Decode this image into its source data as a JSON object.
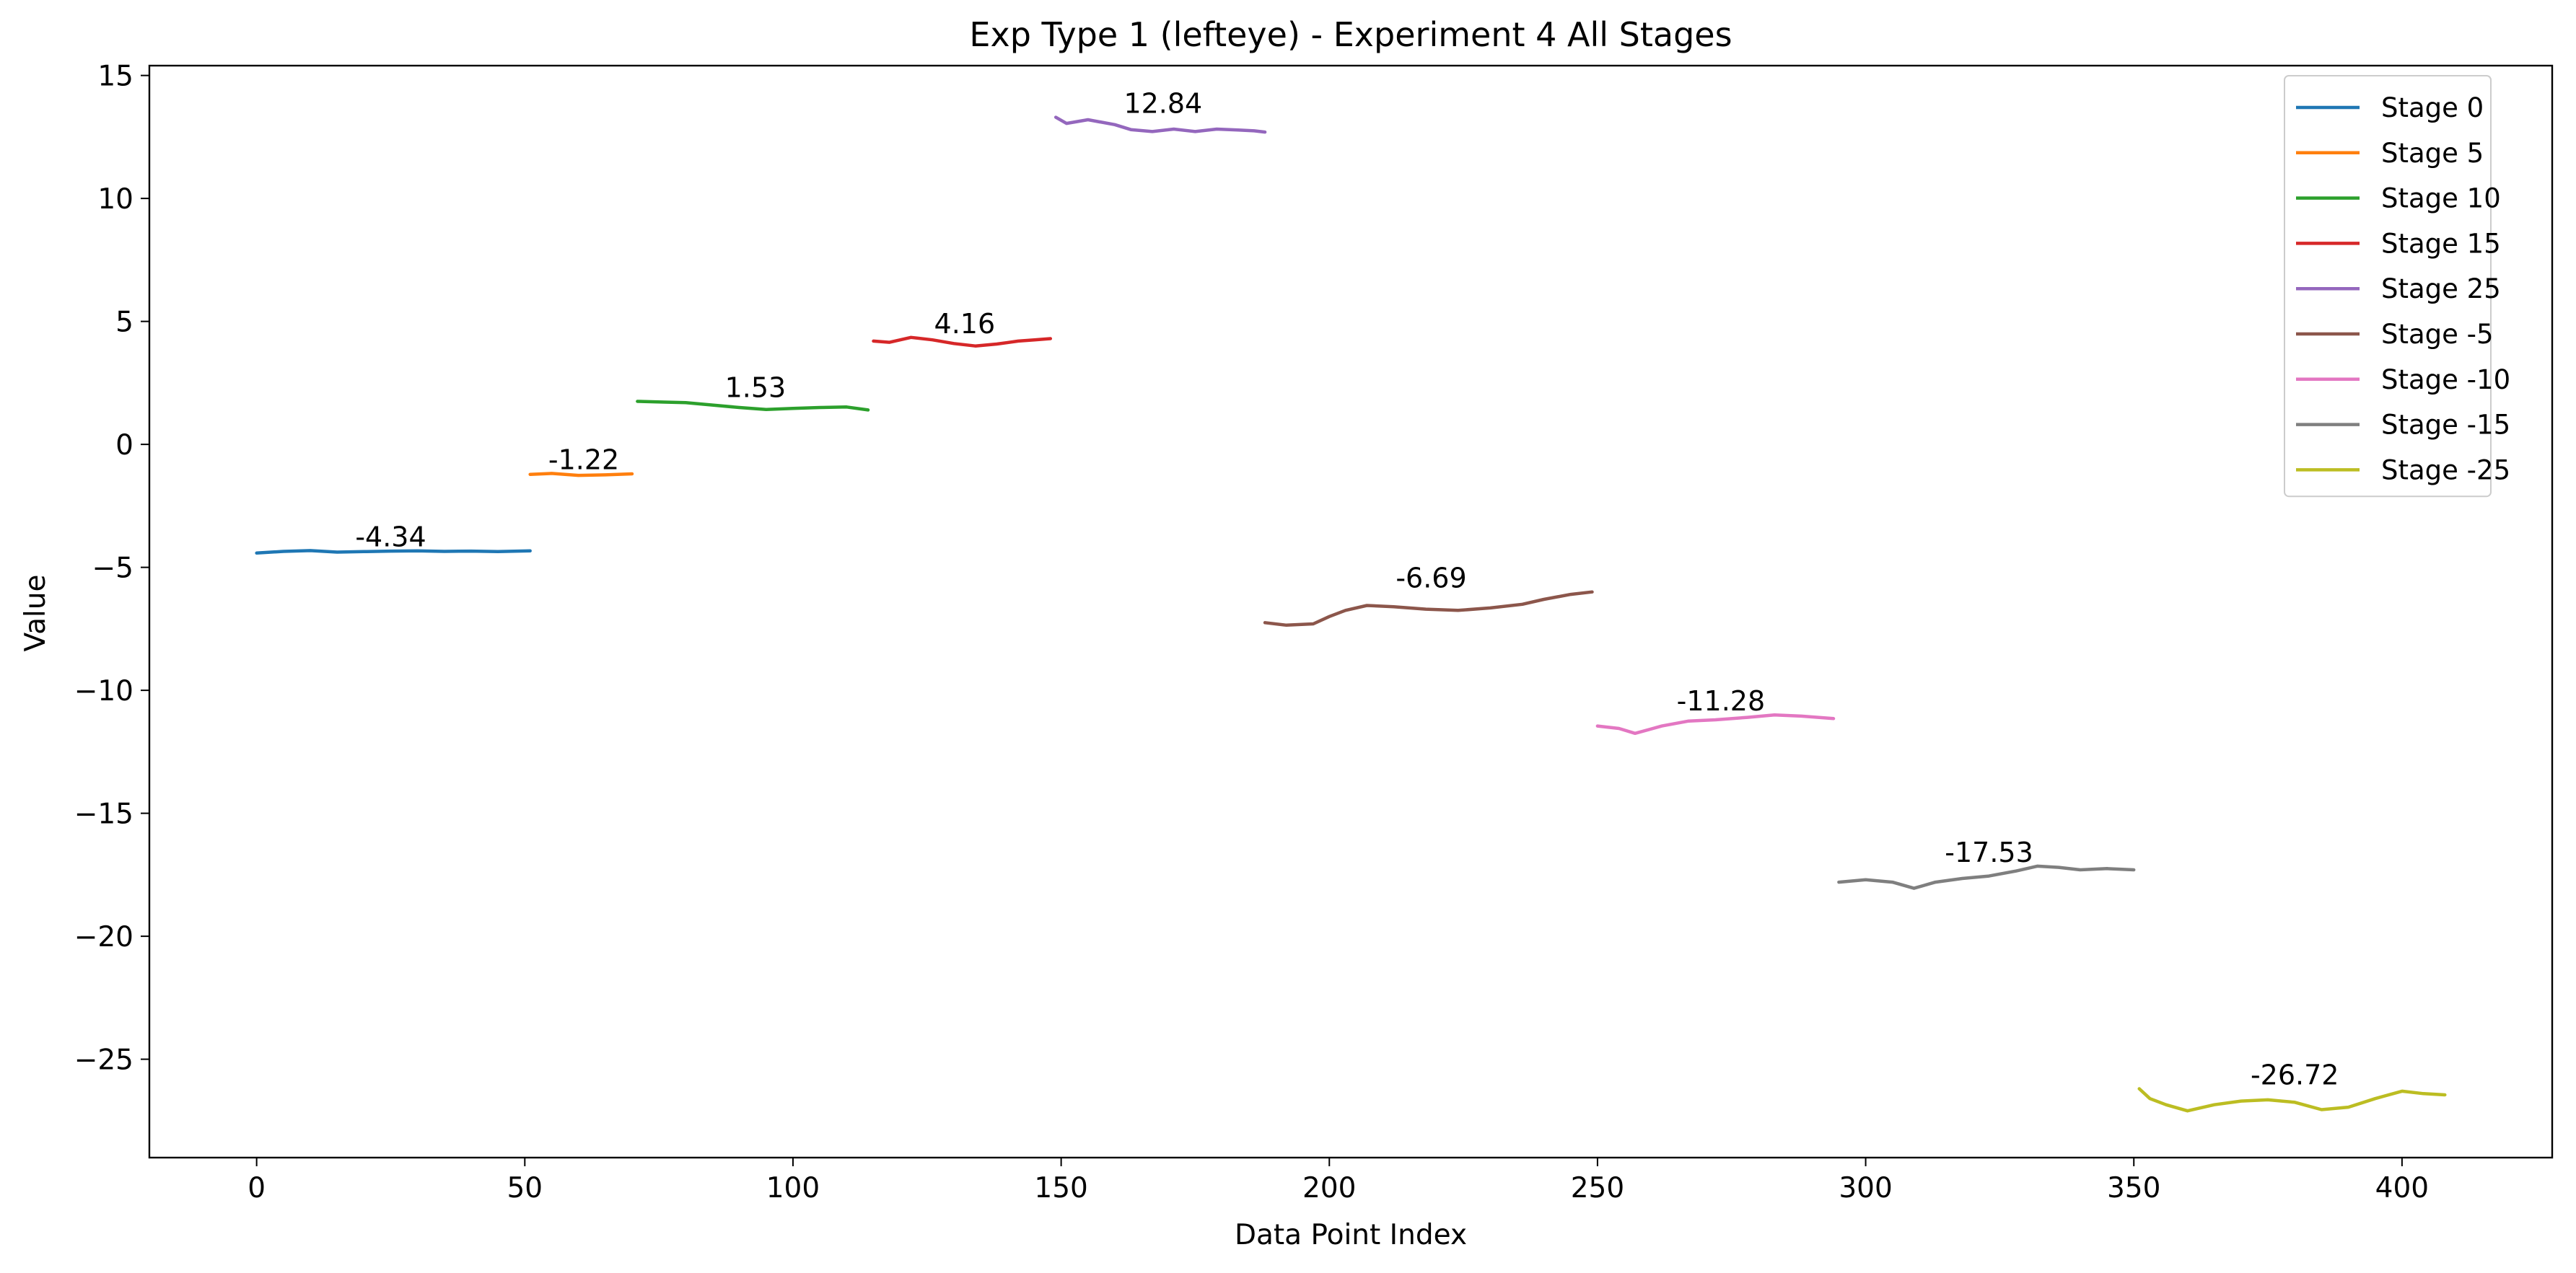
{
  "chart_data": {
    "type": "line",
    "title": "Exp Type 1 (lefteye) - Experiment 4 All Stages",
    "xlabel": "Data Point Index",
    "ylabel": "Value",
    "xlim": [
      -20,
      428
    ],
    "ylim": [
      -29,
      15.4
    ],
    "xticks": [
      0,
      50,
      100,
      150,
      200,
      250,
      300,
      350,
      400
    ],
    "yticks": [
      15,
      10,
      5,
      0,
      -5,
      -10,
      -15,
      -20,
      -25
    ],
    "xtick_labels": [
      "0",
      "50",
      "100",
      "150",
      "200",
      "250",
      "300",
      "350",
      "400"
    ],
    "ytick_labels": [
      "15",
      "10",
      "5",
      "0",
      "−5",
      "−10",
      "−15",
      "−20",
      "−25"
    ],
    "grid": false,
    "legend_position": "top-right",
    "series": [
      {
        "name": "Stage 0",
        "color": "#1f77b4",
        "mean_label": "-4.34",
        "label_x": 25,
        "points": [
          [
            0,
            -4.42
          ],
          [
            5,
            -4.35
          ],
          [
            10,
            -4.32
          ],
          [
            15,
            -4.38
          ],
          [
            20,
            -4.36
          ],
          [
            25,
            -4.34
          ],
          [
            30,
            -4.33
          ],
          [
            35,
            -4.35
          ],
          [
            40,
            -4.34
          ],
          [
            45,
            -4.36
          ],
          [
            51,
            -4.33
          ]
        ]
      },
      {
        "name": "Stage 5",
        "color": "#ff7f0e",
        "mean_label": "-1.22",
        "label_x": 61,
        "points": [
          [
            51,
            -1.22
          ],
          [
            55,
            -1.18
          ],
          [
            60,
            -1.26
          ],
          [
            65,
            -1.24
          ],
          [
            70,
            -1.2
          ]
        ]
      },
      {
        "name": "Stage 10",
        "color": "#2ca02c",
        "mean_label": "1.53",
        "label_x": 93,
        "points": [
          [
            71,
            1.75
          ],
          [
            76,
            1.72
          ],
          [
            80,
            1.7
          ],
          [
            85,
            1.6
          ],
          [
            90,
            1.5
          ],
          [
            95,
            1.42
          ],
          [
            100,
            1.46
          ],
          [
            105,
            1.5
          ],
          [
            110,
            1.52
          ],
          [
            114,
            1.4
          ]
        ]
      },
      {
        "name": "Stage 15",
        "color": "#d62728",
        "mean_label": "4.16",
        "label_x": 132,
        "points": [
          [
            115,
            4.2
          ],
          [
            118,
            4.15
          ],
          [
            122,
            4.35
          ],
          [
            126,
            4.25
          ],
          [
            130,
            4.1
          ],
          [
            134,
            4.0
          ],
          [
            138,
            4.08
          ],
          [
            142,
            4.2
          ],
          [
            145,
            4.25
          ],
          [
            148,
            4.3
          ]
        ]
      },
      {
        "name": "Stage 25",
        "color": "#9467bd",
        "mean_label": "12.84",
        "label_x": 169,
        "points": [
          [
            149,
            13.3
          ],
          [
            151,
            13.05
          ],
          [
            155,
            13.2
          ],
          [
            160,
            13.0
          ],
          [
            163,
            12.8
          ],
          [
            167,
            12.72
          ],
          [
            171,
            12.82
          ],
          [
            175,
            12.72
          ],
          [
            179,
            12.82
          ],
          [
            183,
            12.78
          ],
          [
            186,
            12.75
          ],
          [
            188,
            12.7
          ]
        ]
      },
      {
        "name": "Stage -5",
        "color": "#8c564b",
        "mean_label": "-6.69",
        "label_x": 219,
        "points": [
          [
            188,
            -7.25
          ],
          [
            192,
            -7.35
          ],
          [
            197,
            -7.3
          ],
          [
            200,
            -7.0
          ],
          [
            203,
            -6.75
          ],
          [
            207,
            -6.55
          ],
          [
            212,
            -6.6
          ],
          [
            218,
            -6.7
          ],
          [
            224,
            -6.75
          ],
          [
            230,
            -6.65
          ],
          [
            236,
            -6.5
          ],
          [
            240,
            -6.3
          ],
          [
            245,
            -6.1
          ],
          [
            249,
            -6.0
          ]
        ]
      },
      {
        "name": "Stage -10",
        "color": "#e377c2",
        "mean_label": "-11.28",
        "label_x": 273,
        "points": [
          [
            250,
            -11.45
          ],
          [
            254,
            -11.55
          ],
          [
            257,
            -11.75
          ],
          [
            262,
            -11.45
          ],
          [
            267,
            -11.25
          ],
          [
            272,
            -11.2
          ],
          [
            278,
            -11.1
          ],
          [
            283,
            -11.0
          ],
          [
            288,
            -11.05
          ],
          [
            294,
            -11.15
          ]
        ]
      },
      {
        "name": "Stage -15",
        "color": "#7f7f7f",
        "mean_label": "-17.53",
        "label_x": 323,
        "points": [
          [
            295,
            -17.8
          ],
          [
            300,
            -17.7
          ],
          [
            305,
            -17.8
          ],
          [
            309,
            -18.05
          ],
          [
            313,
            -17.8
          ],
          [
            318,
            -17.65
          ],
          [
            323,
            -17.55
          ],
          [
            328,
            -17.35
          ],
          [
            332,
            -17.15
          ],
          [
            336,
            -17.2
          ],
          [
            340,
            -17.3
          ],
          [
            345,
            -17.25
          ],
          [
            350,
            -17.3
          ]
        ]
      },
      {
        "name": "Stage -25",
        "color": "#bcbd22",
        "mean_label": "-26.72",
        "label_x": 380,
        "points": [
          [
            351,
            -26.2
          ],
          [
            353,
            -26.6
          ],
          [
            356,
            -26.85
          ],
          [
            360,
            -27.1
          ],
          [
            365,
            -26.85
          ],
          [
            370,
            -26.7
          ],
          [
            375,
            -26.65
          ],
          [
            380,
            -26.75
          ],
          [
            385,
            -27.05
          ],
          [
            390,
            -26.95
          ],
          [
            395,
            -26.6
          ],
          [
            400,
            -26.3
          ],
          [
            404,
            -26.4
          ],
          [
            408,
            -26.45
          ]
        ]
      }
    ]
  }
}
